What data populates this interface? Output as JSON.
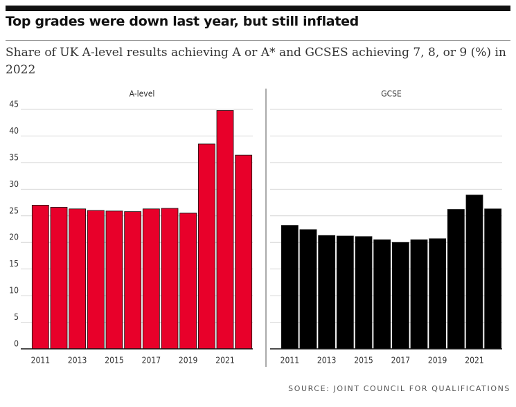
{
  "title": "Top grades were down last year, but still inflated",
  "subtitle": "Share of UK A-level results achieving A or A* and GCSES achieving 7, 8, or 9 (%) in 2022",
  "source": "SOURCE: JOINT COUNCIL FOR QUALIFICATIONS",
  "chart_data": [
    {
      "type": "bar",
      "title": "A-level",
      "categories": [
        "2011",
        null,
        "2013",
        null,
        "2015",
        null,
        "2017",
        null,
        "2019",
        null,
        "2021",
        null
      ],
      "values": [
        27.0,
        26.6,
        26.3,
        26.0,
        25.9,
        25.8,
        26.3,
        26.4,
        25.5,
        38.5,
        44.8,
        36.4
      ],
      "color": "#e8002a",
      "ylim": [
        0,
        45
      ],
      "yticks": [
        0,
        5,
        10,
        15,
        20,
        25,
        30,
        35,
        40,
        45
      ],
      "grid": true
    },
    {
      "type": "bar",
      "title": "GCSE",
      "categories": [
        "2011",
        null,
        "2013",
        null,
        "2015",
        null,
        "2017",
        null,
        "2019",
        null,
        "2021",
        null
      ],
      "values": [
        23.2,
        22.4,
        21.3,
        21.2,
        21.1,
        20.5,
        20.0,
        20.5,
        20.7,
        26.2,
        28.9,
        26.3
      ],
      "color": "#000000",
      "ylim": [
        0,
        45
      ],
      "grid": true
    }
  ]
}
